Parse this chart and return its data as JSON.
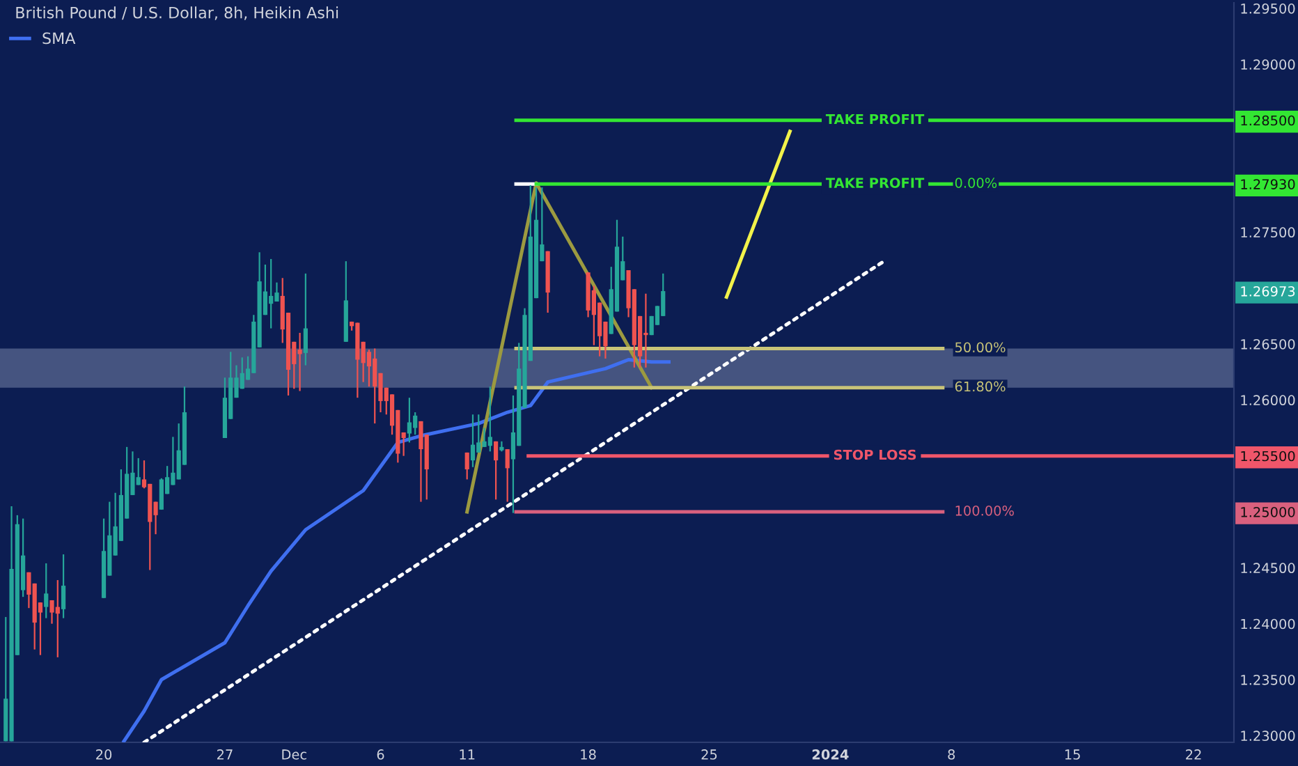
{
  "chart_data": {
    "type": "candlestick",
    "title": "British Pound / U.S. Dollar, 8h, Heikin Ashi",
    "x": [
      "2023-11-14T08:00",
      "2023-11-14T16:00",
      "2023-11-15T00:00",
      "2023-11-15T08:00",
      "2023-11-15T16:00",
      "2023-11-16T00:00",
      "2023-11-16T08:00",
      "2023-11-16T16:00",
      "2023-11-17T00:00",
      "2023-11-17T08:00",
      "2023-11-17T16:00",
      "2023-11-20T00:00",
      "2023-11-20T08:00",
      "2023-11-20T16:00",
      "2023-11-21T00:00",
      "2023-11-21T08:00",
      "2023-11-21T16:00",
      "2023-11-22T00:00",
      "2023-11-22T08:00",
      "2023-11-22T16:00",
      "2023-11-23T00:00",
      "2023-11-23T08:00",
      "2023-11-23T16:00",
      "2023-11-24T00:00",
      "2023-11-24T08:00",
      "2023-11-24T16:00",
      "2023-11-27T00:00",
      "2023-11-27T08:00",
      "2023-11-27T16:00",
      "2023-11-28T00:00",
      "2023-11-28T08:00",
      "2023-11-28T16:00",
      "2023-11-29T00:00",
      "2023-11-29T08:00",
      "2023-11-29T16:00",
      "2023-11-30T00:00",
      "2023-11-30T08:00",
      "2023-11-30T16:00",
      "2023-12-01T00:00",
      "2023-12-01T08:00",
      "2023-12-01T16:00",
      "2023-12-04T00:00",
      "2023-12-04T08:00",
      "2023-12-04T16:00",
      "2023-12-05T00:00",
      "2023-12-05T08:00",
      "2023-12-05T16:00",
      "2023-12-06T00:00",
      "2023-12-06T08:00",
      "2023-12-06T16:00",
      "2023-12-07T00:00",
      "2023-12-07T08:00",
      "2023-12-07T16:00",
      "2023-12-08T00:00",
      "2023-12-08T08:00",
      "2023-12-08T16:00",
      "2023-12-11T00:00",
      "2023-12-11T08:00",
      "2023-12-11T16:00",
      "2023-12-12T00:00",
      "2023-12-12T08:00",
      "2023-12-12T16:00",
      "2023-12-13T00:00",
      "2023-12-13T08:00",
      "2023-12-13T16:00",
      "2023-12-14T00:00",
      "2023-12-14T08:00",
      "2023-12-14T16:00",
      "2023-12-15T00:00",
      "2023-12-15T08:00",
      "2023-12-15T16:00",
      "2023-12-18T00:00",
      "2023-12-18T08:00",
      "2023-12-18T16:00",
      "2023-12-19T00:00",
      "2023-12-19T08:00",
      "2023-12-19T16:00",
      "2023-12-20T00:00",
      "2023-12-20T08:00",
      "2023-12-20T16:00",
      "2023-12-21T00:00",
      "2023-12-21T08:00",
      "2023-12-21T16:00",
      "2023-12-22T00:00",
      "2023-12-22T08:00"
    ],
    "ohlc": [
      [
        1.2295,
        1.2406,
        1.2295,
        1.2333
      ],
      [
        1.2295,
        1.2505,
        1.2295,
        1.2449
      ],
      [
        1.2372,
        1.2497,
        1.2372,
        1.2489
      ],
      [
        1.243,
        1.2494,
        1.2424,
        1.2461
      ],
      [
        1.2446,
        1.2446,
        1.2414,
        1.2426
      ],
      [
        1.2436,
        1.2436,
        1.2377,
        1.2401
      ],
      [
        1.2419,
        1.2419,
        1.2372,
        1.241
      ],
      [
        1.2415,
        1.2454,
        1.2405,
        1.2427
      ],
      [
        1.2421,
        1.2421,
        1.24,
        1.241
      ],
      [
        1.2415,
        1.2439,
        1.237,
        1.2409
      ],
      [
        1.2413,
        1.2462,
        1.2405,
        1.2434
      ],
      [
        1.2423,
        1.2494,
        1.2423,
        1.2465
      ],
      [
        1.2443,
        1.2509,
        1.2443,
        1.2479
      ],
      [
        1.2461,
        1.2517,
        1.2461,
        1.2487
      ],
      [
        1.2474,
        1.2538,
        1.2474,
        1.2515
      ],
      [
        1.2494,
        1.2558,
        1.2494,
        1.2534
      ],
      [
        1.2515,
        1.2554,
        1.2515,
        1.2535
      ],
      [
        1.2524,
        1.2548,
        1.2524,
        1.2531
      ],
      [
        1.2529,
        1.2546,
        1.2521,
        1.2522
      ],
      [
        1.2525,
        1.2525,
        1.2448,
        1.2491
      ],
      [
        1.2509,
        1.2509,
        1.248,
        1.2497
      ],
      [
        1.2502,
        1.253,
        1.2502,
        1.2529
      ],
      [
        1.2516,
        1.2541,
        1.2516,
        1.2531
      ],
      [
        1.2524,
        1.2567,
        1.2524,
        1.2535
      ],
      [
        1.2529,
        1.2579,
        1.2529,
        1.2555
      ],
      [
        1.2542,
        1.2612,
        1.2542,
        1.2589
      ],
      [
        1.2566,
        1.262,
        1.2566,
        1.2602
      ],
      [
        1.2583,
        1.2643,
        1.2583,
        1.262
      ],
      [
        1.2602,
        1.2631,
        1.2602,
        1.262
      ],
      [
        1.261,
        1.2638,
        1.261,
        1.2624
      ],
      [
        1.2618,
        1.2639,
        1.2618,
        1.2628
      ],
      [
        1.2624,
        1.2676,
        1.2624,
        1.267
      ],
      [
        1.2647,
        1.2732,
        1.2647,
        1.2706
      ],
      [
        1.2676,
        1.2721,
        1.2676,
        1.2697
      ],
      [
        1.2686,
        1.2726,
        1.2664,
        1.2693
      ],
      [
        1.2688,
        1.2705,
        1.2688,
        1.2696
      ],
      [
        1.2693,
        1.2709,
        1.2651,
        1.2663
      ],
      [
        1.2678,
        1.2678,
        1.2604,
        1.2627
      ],
      [
        1.2652,
        1.2652,
        1.261,
        1.2632
      ],
      [
        1.2645,
        1.266,
        1.2608,
        1.2641
      ],
      [
        1.2642,
        1.2713,
        1.2631,
        1.2664
      ],
      [
        1.2652,
        1.2724,
        1.2652,
        1.2689
      ],
      [
        1.267,
        1.267,
        1.2662,
        1.2666
      ],
      [
        1.2669,
        1.2669,
        1.2602,
        1.2636
      ],
      [
        1.2652,
        1.2652,
        1.2616,
        1.2633
      ],
      [
        1.2643,
        1.2645,
        1.2612,
        1.263
      ],
      [
        1.2637,
        1.2646,
        1.2579,
        1.2612
      ],
      [
        1.2624,
        1.2624,
        1.2589,
        1.2599
      ],
      [
        1.2611,
        1.2611,
        1.2587,
        1.2599
      ],
      [
        1.2605,
        1.2605,
        1.2569,
        1.2577
      ],
      [
        1.2591,
        1.2591,
        1.2544,
        1.2552
      ],
      [
        1.2571,
        1.2571,
        1.255,
        1.2566
      ],
      [
        1.257,
        1.2602,
        1.2562,
        1.258
      ],
      [
        1.2575,
        1.2589,
        1.2569,
        1.2586
      ],
      [
        1.2581,
        1.2581,
        1.2509,
        1.2556
      ],
      [
        1.2569,
        1.2569,
        1.2511,
        1.2538
      ],
      [
        1.2553,
        1.2553,
        1.2529,
        1.2538
      ],
      [
        1.2546,
        1.2587,
        1.254,
        1.256
      ],
      [
        1.2553,
        1.2587,
        1.2553,
        1.2562
      ],
      [
        1.2558,
        1.2575,
        1.2558,
        1.2563
      ],
      [
        1.2559,
        1.2612,
        1.2554,
        1.2567
      ],
      [
        1.2563,
        1.2563,
        1.2511,
        1.2546
      ],
      [
        1.2555,
        1.2563,
        1.2554,
        1.2558
      ],
      [
        1.2556,
        1.2556,
        1.2509,
        1.2539
      ],
      [
        1.2547,
        1.2604,
        1.2499,
        1.2571
      ],
      [
        1.2559,
        1.2651,
        1.2559,
        1.2628
      ],
      [
        1.2593,
        1.2682,
        1.2593,
        1.2676
      ],
      [
        1.2635,
        1.2792,
        1.2635,
        1.2746
      ],
      [
        1.2691,
        1.279,
        1.2691,
        1.2761
      ],
      [
        1.2724,
        1.279,
        1.2724,
        1.2739
      ],
      [
        1.2733,
        1.2733,
        1.2678,
        1.2696
      ],
      [
        1.2714,
        1.2714,
        1.2674,
        1.268
      ],
      [
        1.2698,
        1.2702,
        1.2649,
        1.2676
      ],
      [
        1.2687,
        1.2687,
        1.2639,
        1.2657
      ],
      [
        1.267,
        1.267,
        1.2637,
        1.2648
      ],
      [
        1.2659,
        1.2719,
        1.2659,
        1.2699
      ],
      [
        1.2679,
        1.2761,
        1.2679,
        1.2737
      ],
      [
        1.2707,
        1.2746,
        1.2707,
        1.2724
      ],
      [
        1.2716,
        1.2716,
        1.2674,
        1.2682
      ],
      [
        1.2699,
        1.2699,
        1.2629,
        1.2649
      ],
      [
        1.2675,
        1.2675,
        1.2629,
        1.2639
      ],
      [
        1.266,
        1.2695,
        1.2629,
        1.2658
      ],
      [
        1.2658,
        1.2675,
        1.2658,
        1.2675
      ],
      [
        1.2667,
        1.2684,
        1.2667,
        1.2684
      ],
      [
        1.2675,
        1.2713,
        1.2675,
        1.26973
      ]
    ],
    "colors": [
      "#26a69a",
      "#26a69a",
      "#26a69a",
      "#26a69a",
      "#ef5350",
      "#ef5350",
      "#ef5350",
      "#26a69a",
      "#ef5350",
      "#ef5350",
      "#26a69a",
      "#26a69a",
      "#26a69a",
      "#26a69a",
      "#26a69a",
      "#26a69a",
      "#26a69a",
      "#26a69a",
      "#ef5350",
      "#ef5350",
      "#ef5350",
      "#26a69a",
      "#26a69a",
      "#26a69a",
      "#26a69a",
      "#26a69a",
      "#26a69a",
      "#26a69a",
      "#26a69a",
      "#26a69a",
      "#26a69a",
      "#26a69a",
      "#26a69a",
      "#26a69a",
      "#26a69a",
      "#26a69a",
      "#ef5350",
      "#ef5350",
      "#ef5350",
      "#ef5350",
      "#26a69a",
      "#26a69a",
      "#ef5350",
      "#ef5350",
      "#ef5350",
      "#ef5350",
      "#ef5350",
      "#ef5350",
      "#ef5350",
      "#ef5350",
      "#ef5350",
      "#ef5350",
      "#26a69a",
      "#26a69a",
      "#ef5350",
      "#ef5350",
      "#ef5350",
      "#26a69a",
      "#26a69a",
      "#26a69a",
      "#26a69a",
      "#ef5350",
      "#26a69a",
      "#ef5350",
      "#26a69a",
      "#26a69a",
      "#26a69a",
      "#26a69a",
      "#26a69a",
      "#26a69a",
      "#ef5350",
      "#ef5350",
      "#ef5350",
      "#ef5350",
      "#ef5350",
      "#26a69a",
      "#26a69a",
      "#26a69a",
      "#ef5350",
      "#ef5350",
      "#ef5350",
      "#ef5350",
      "#26a69a",
      "#26a69a",
      "#26a69a"
    ],
    "series": [
      {
        "name": "SMA",
        "type": "line",
        "color": "#3f6ff0",
        "x": [
          "2023-11-21T04:00",
          "2023-11-22T08:00",
          "2023-11-23T08:00",
          "2023-11-27T00:00",
          "2023-11-28T08:00",
          "2023-11-29T16:00",
          "2023-12-01T16:00",
          "2023-12-05T00:00",
          "2023-12-07T00:00",
          "2023-12-08T08:00",
          "2023-12-11T16:00",
          "2023-12-13T08:00",
          "2023-12-14T16:00",
          "2023-12-15T16:00",
          "2023-12-19T00:00",
          "2023-12-20T08:00",
          "2023-12-21T16:00",
          "2023-12-22T16:00"
        ],
        "values": [
          1.2295,
          1.2322,
          1.235,
          1.2383,
          1.2416,
          1.2447,
          1.2484,
          1.2519,
          1.2562,
          1.2568,
          1.2579,
          1.2589,
          1.2595,
          1.2616,
          1.2628,
          1.2636,
          1.2634,
          1.2634
        ]
      },
      {
        "type": "line",
        "color": "#ffffff",
        "line_style": "dotted",
        "x": [
          "2023-11-22T08:00",
          "2024-01-04T00:00"
        ],
        "values": [
          1.2294,
          1.2723
        ]
      },
      {
        "type": "line",
        "color": "#9c9a40",
        "x": [
          "2023-12-11T00:00",
          "2023-12-15T00:00",
          "2023-12-21T16:00"
        ],
        "values": [
          1.25,
          1.2794,
          1.2611
        ]
      },
      {
        "type": "line",
        "color": "#f2f24a",
        "x": [
          "2023-12-26T00:00",
          "2023-12-29T16:00"
        ],
        "values": [
          1.2692,
          1.284
        ]
      },
      {
        "type": "line",
        "color": "#33e633",
        "x": [
          "2023-12-13T20:00",
          "2024-01-24T08:00"
        ],
        "values": [
          1.285,
          1.285
        ]
      },
      {
        "type": "line",
        "color": "#ffffff",
        "x": [
          "2023-12-13T20:00",
          "2023-12-15T00:00"
        ],
        "values": [
          1.2793,
          1.2793
        ]
      },
      {
        "type": "line",
        "color": "#33e633",
        "x": [
          "2023-12-15T00:00",
          "2024-01-24T08:00"
        ],
        "values": [
          1.2793,
          1.2793
        ]
      },
      {
        "type": "line",
        "color": "#c9c478",
        "x": [
          "2023-12-13T20:00",
          "2024-01-07T12:00"
        ],
        "values": [
          1.2646,
          1.2646
        ]
      },
      {
        "type": "line",
        "color": "#c9c478",
        "x": [
          "2023-12-13T20:00",
          "2024-01-07T12:00"
        ],
        "values": [
          1.2611,
          1.2611
        ]
      },
      {
        "type": "line",
        "color": "#f0566a",
        "x": [
          "2023-12-14T13:00",
          "2024-01-24T08:00"
        ],
        "values": [
          1.255,
          1.255
        ]
      },
      {
        "type": "line",
        "color": "#d9607e",
        "x": [
          "2023-12-13T20:00",
          "2024-01-07T12:00"
        ],
        "values": [
          1.25,
          1.25
        ]
      }
    ],
    "bands": [
      {
        "axis": "y",
        "from": 1.2611,
        "to": 1.2646,
        "color": "#8c99b8"
      }
    ],
    "annotations": [
      {
        "text": "TAKE PROFIT",
        "x": "2024-01-03T14:00",
        "y": 1.285
      },
      {
        "text": "TAKE PROFIT",
        "x": "2024-01-03T14:00",
        "y": 1.2793
      },
      {
        "text": "0.00%",
        "x": "2024-01-07T12:00",
        "y": 1.2793
      },
      {
        "text": "50.00%",
        "x": "2024-01-07T12:00",
        "y": 1.2646
      },
      {
        "text": "61.80%",
        "x": "2024-01-07T12:00",
        "y": 1.2611
      },
      {
        "text": "STOP LOSS",
        "x": "2024-01-03T14:00",
        "y": 1.255
      },
      {
        "text": "100.00%",
        "x": "2024-01-07T12:00",
        "y": 1.25
      }
    ],
    "xlim": [
      "2023-11-14T00:00",
      "2024-01-24T08:00"
    ],
    "ylim": [
      1.2294,
      1.2955
    ],
    "xticks": [
      {
        "value": "2023-11-20",
        "label": "20"
      },
      {
        "value": "2023-11-27",
        "label": "27"
      },
      {
        "value": "2023-12-01",
        "label": "Dec"
      },
      {
        "value": "2023-12-06",
        "label": "6"
      },
      {
        "value": "2023-12-11",
        "label": "11"
      },
      {
        "value": "2023-12-18",
        "label": "18"
      },
      {
        "value": "2023-12-25",
        "label": "25"
      },
      {
        "value": "2024-01-01",
        "label": "2024"
      },
      {
        "value": "2024-01-08",
        "label": "8"
      },
      {
        "value": "2024-01-15",
        "label": "15"
      },
      {
        "value": "2024-01-22",
        "label": "22"
      }
    ],
    "yticks": [
      {
        "value": 1.295,
        "label": "1.29500"
      },
      {
        "value": 1.29,
        "label": "1.29000"
      },
      {
        "value": 1.285,
        "label": "1.28500"
      },
      {
        "value": 1.2793,
        "label": "1.27930"
      },
      {
        "value": 1.275,
        "label": "1.27500"
      },
      {
        "value": 1.26973,
        "label": "1.26973"
      },
      {
        "value": 1.265,
        "label": "1.26500"
      },
      {
        "value": 1.26,
        "label": "1.26000"
      },
      {
        "value": 1.255,
        "label": "1.25500"
      },
      {
        "value": 1.25,
        "label": "1.25000"
      },
      {
        "value": 1.245,
        "label": "1.24500"
      },
      {
        "value": 1.24,
        "label": "1.24000"
      },
      {
        "value": 1.235,
        "label": "1.23500"
      },
      {
        "value": 1.23,
        "label": "1.23000"
      }
    ],
    "legend": "top left"
  }
}
